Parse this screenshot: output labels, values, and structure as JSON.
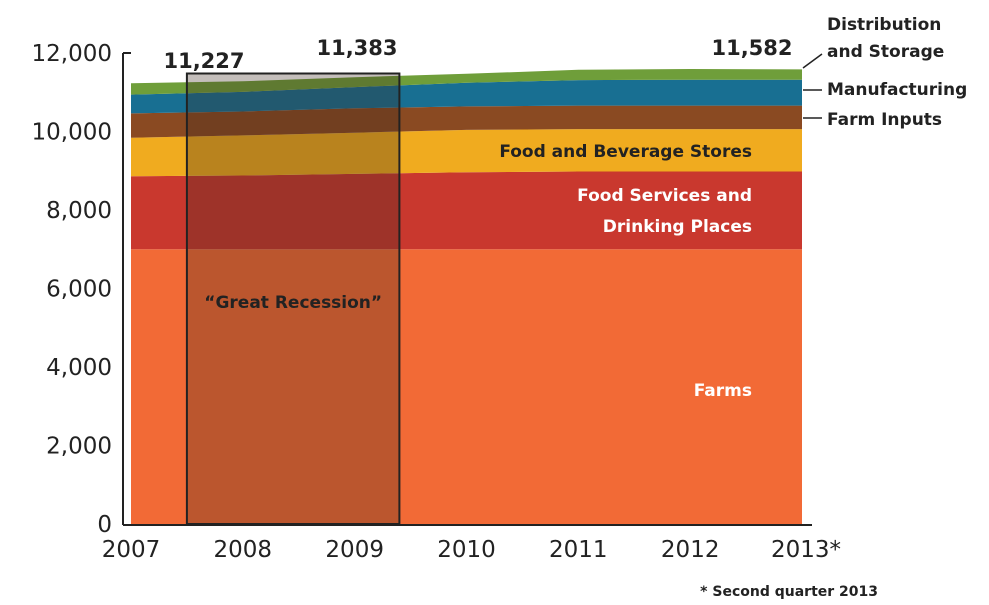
{
  "chart_data": {
    "type": "area",
    "stacked": true,
    "title": "",
    "xlabel": "",
    "ylabel": "",
    "x": [
      "2007",
      "2008",
      "2009",
      "2010",
      "2011",
      "2012",
      "2013*"
    ],
    "ylim": [
      0,
      12000
    ],
    "yticks": [
      "0",
      "2,000",
      "4,000",
      "6,000",
      "8,000",
      "10,000",
      "12,000"
    ],
    "grid": false,
    "series": [
      {
        "name": "Farms",
        "color": "#f26a36",
        "values": [
          7000,
          7000,
          7000,
          7000,
          7000,
          7000,
          7000
        ]
      },
      {
        "name": "Food Services and Drinking Places",
        "label_lines": [
          "Food Services and",
          "Drinking Places"
        ],
        "color": "#c9382e",
        "values": [
          1860,
          1880,
          1920,
          1960,
          1980,
          1980,
          1980
        ]
      },
      {
        "name": "Food and Beverage Stores",
        "color": "#f0ab1f",
        "values": [
          980,
          1020,
          1050,
          1080,
          1080,
          1080,
          1080
        ]
      },
      {
        "name": "Farm Inputs",
        "color": "#8a4a22",
        "values": [
          620,
          610,
          620,
          600,
          600,
          600,
          600
        ]
      },
      {
        "name": "Manufacturing",
        "color": "#186f92",
        "values": [
          480,
          500,
          540,
          600,
          650,
          660,
          660
        ]
      },
      {
        "name": "Distribution and Storage",
        "label_lines": [
          "Distribution",
          "and Storage"
        ],
        "color": "#6f9e3a",
        "values": [
          287,
          270,
          253,
          230,
          262,
          272,
          262
        ]
      }
    ],
    "totals": [
      {
        "x": "2007",
        "label": "11,227"
      },
      {
        "x": "2009",
        "label": "11,383"
      },
      {
        "x": "2013*",
        "label": "11,582"
      }
    ],
    "annotations": {
      "recession": {
        "label": "“Great Recession”",
        "x_start": 2007.5,
        "x_end": 2009.4
      },
      "footnote": "* Second quarter 2013"
    }
  }
}
